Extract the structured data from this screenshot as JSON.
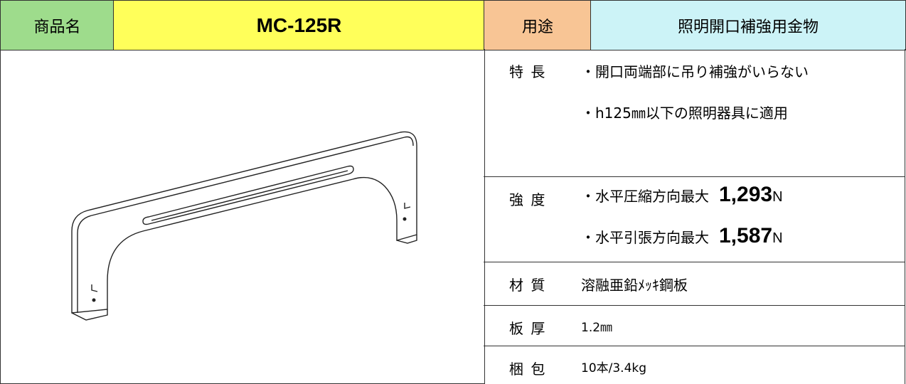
{
  "header": {
    "product_label": "商品名",
    "product_name": "MC-125R",
    "use_label": "用途",
    "use": "照明開口補強用金物"
  },
  "specs": [
    {
      "label": "特 長",
      "lines": [
        "・開口両端部に吊り補強がいらない",
        "・h125㎜以下の照明器具に適用"
      ]
    },
    {
      "label": "強 度",
      "lines": [
        {
          "text": "・水平圧縮方向最大",
          "value": "1,293",
          "unit": "N"
        },
        {
          "text": "・水平引張方向最大",
          "value": "1,587",
          "unit": "N"
        }
      ]
    },
    {
      "label": "材 質",
      "lines": [
        "溶融亜鉛ﾒｯｷ鋼板"
      ]
    },
    {
      "label": "板 厚",
      "lines": [
        "1.2㎜"
      ]
    },
    {
      "label": "梱 包",
      "lines": [
        "10本/3.4kg"
      ]
    }
  ]
}
